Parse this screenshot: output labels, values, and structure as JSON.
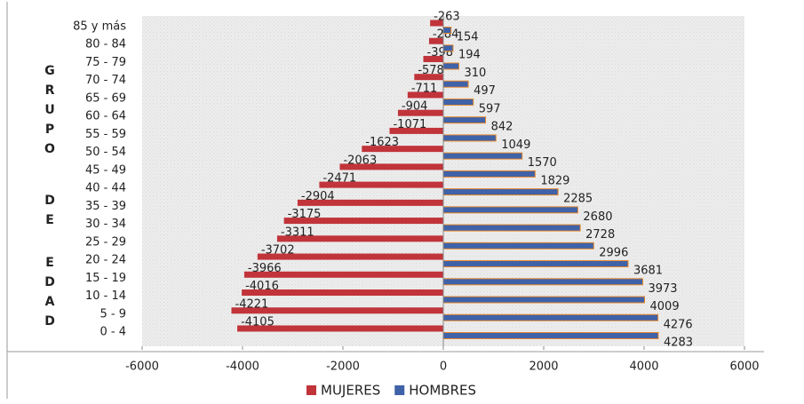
{
  "chart_data": {
    "type": "pyramid",
    "y_label": [
      "GRUPO",
      "DE",
      "EDAD"
    ],
    "categories": [
      "0 - 4",
      "5 - 9",
      "10 - 14",
      "15 - 19",
      "20 - 24",
      "25 - 29",
      "30 - 34",
      "35 - 39",
      "40 - 44",
      "45 - 49",
      "50 - 54",
      "55 - 59",
      "60 - 64",
      "65 - 69",
      "70 - 74",
      "75 - 79",
      "80 - 84",
      "85 y más"
    ],
    "series": [
      {
        "name": "MUJERES",
        "color": "#c0343a",
        "values": [
          -4105,
          -4221,
          -4016,
          -3966,
          -3702,
          -3311,
          -3175,
          -2904,
          -2471,
          -2063,
          -1623,
          -1071,
          -904,
          -711,
          -578,
          -398,
          -284,
          -263
        ]
      },
      {
        "name": "HOMBRES",
        "color": "#3f62a8",
        "values": [
          4283,
          4276,
          4009,
          3973,
          3681,
          2996,
          2728,
          2680,
          2285,
          1829,
          1570,
          1049,
          842,
          597,
          497,
          310,
          194,
          154
        ]
      }
    ],
    "xlim": [
      -6000,
      6000
    ],
    "xticks": [
      -6000,
      -4000,
      -2000,
      0,
      2000,
      4000,
      6000
    ],
    "grid": false,
    "legend": "bottom"
  }
}
